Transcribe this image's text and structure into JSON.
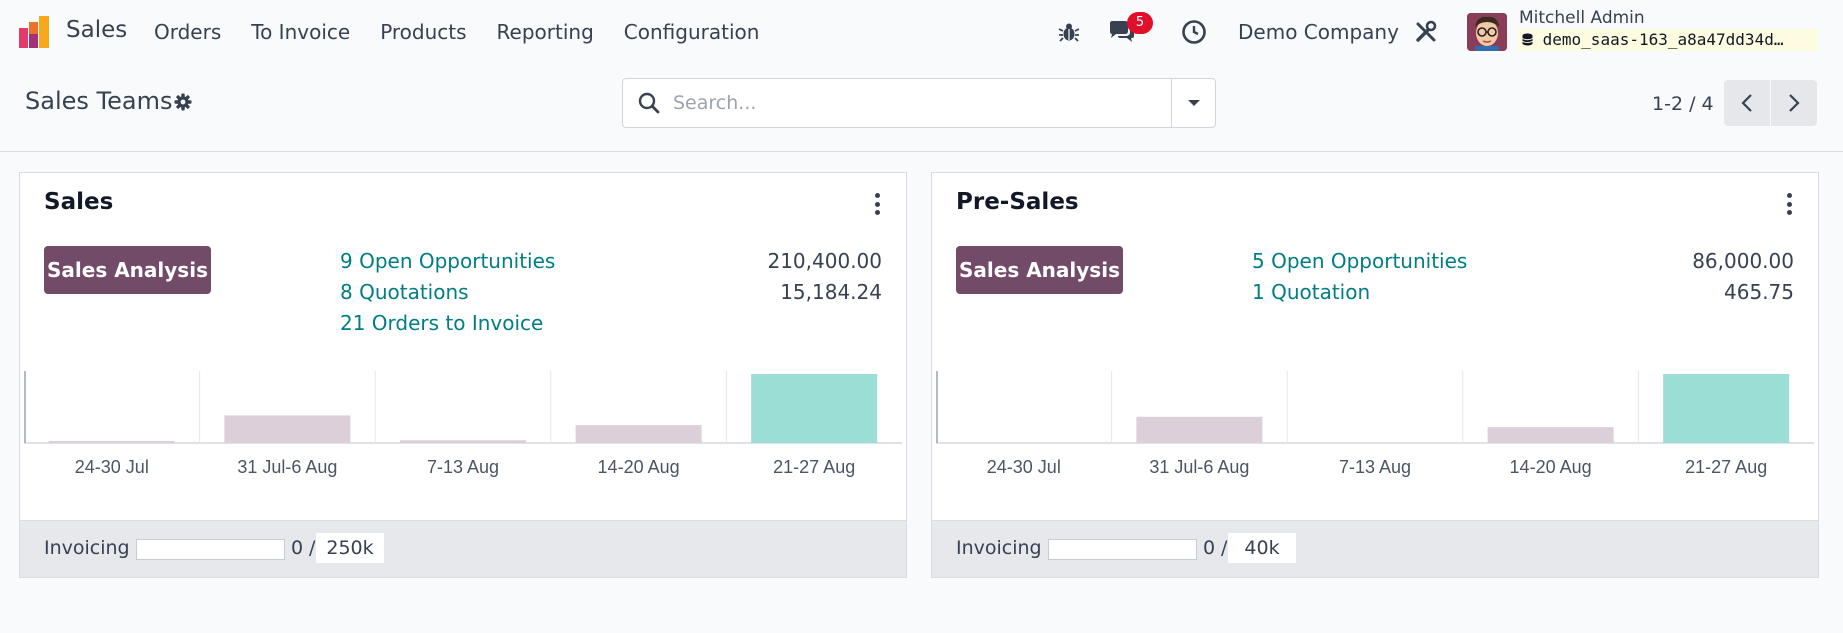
{
  "navbar": {
    "app_name": "Sales",
    "menu": [
      "Orders",
      "To Invoice",
      "Products",
      "Reporting",
      "Configuration"
    ],
    "messages_count": "5",
    "company": "Demo Company",
    "user_name": "Mitchell Admin",
    "database": "demo_saas-163_a8a47dd34d…"
  },
  "control_panel": {
    "title": "Sales Teams",
    "search_placeholder": "Search...",
    "pager": "1-2 / 4"
  },
  "colors": {
    "brand": "#714b67",
    "link": "#017e84",
    "bar_past": "#dccfda",
    "bar_current": "#9bded5"
  },
  "teams": [
    {
      "name": "Sales",
      "analysis_button": "Sales Analysis",
      "stats": [
        {
          "label": "9 Open Opportunities",
          "value": "210,400.00"
        },
        {
          "label": "8 Quotations",
          "value": "15,184.24"
        },
        {
          "label": "21 Orders to Invoice",
          "value": ""
        }
      ],
      "invoicing_label": "Invoicing",
      "invoiced": "0",
      "slash": "/",
      "target": "250k",
      "invoiced_fraction": 0
    },
    {
      "name": "Pre-Sales",
      "analysis_button": "Sales Analysis",
      "stats": [
        {
          "label": "5 Open Opportunities",
          "value": "86,000.00"
        },
        {
          "label": "1 Quotation",
          "value": "465.75"
        }
      ],
      "invoicing_label": "Invoicing",
      "invoiced": "0",
      "slash": "/",
      "target": "40k",
      "invoiced_fraction": 0
    }
  ],
  "chart_data": [
    {
      "type": "bar",
      "categories": [
        "24-30 Jul",
        "31 Jul-6 Aug",
        "7-13 Aug",
        "14-20 Aug",
        "21-27 Aug"
      ],
      "values": [
        2,
        40,
        4,
        26,
        100
      ],
      "ylim": [
        0,
        100
      ]
    },
    {
      "type": "bar",
      "categories": [
        "24-30 Jul",
        "31 Jul-6 Aug",
        "7-13 Aug",
        "14-20 Aug",
        "21-27 Aug"
      ],
      "values": [
        0,
        38,
        0,
        23,
        100
      ],
      "ylim": [
        0,
        100
      ]
    }
  ]
}
